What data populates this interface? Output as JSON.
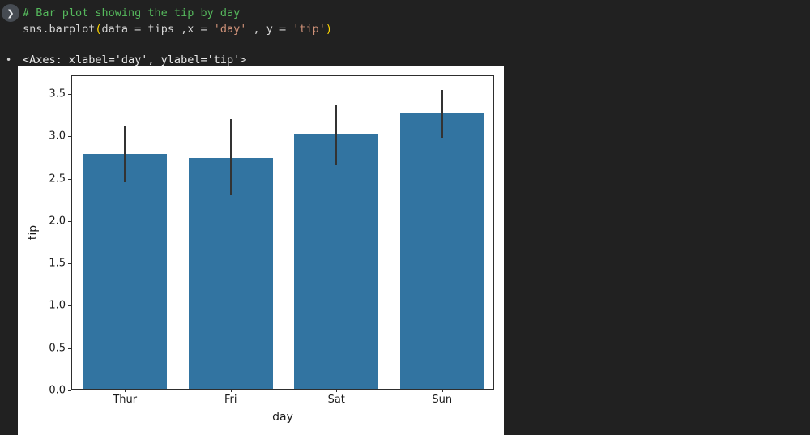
{
  "editor": {
    "run_icon": "❯",
    "comment": "# Bar plot showing the tip by day",
    "code_tokens": [
      {
        "t": "sns.barplot",
        "c": "plain"
      },
      {
        "t": "(",
        "c": "bracket"
      },
      {
        "t": "data = tips ,x = ",
        "c": "plain"
      },
      {
        "t": "'day'",
        "c": "string"
      },
      {
        "t": " , y = ",
        "c": "plain"
      },
      {
        "t": "'tip'",
        "c": "string"
      },
      {
        "t": ")",
        "c": "bracket"
      }
    ],
    "output_bullet": "•",
    "output_text": "<Axes: xlabel='day', ylabel='tip'>"
  },
  "colors": {
    "background": "#212121",
    "comment_green": "#55b85c",
    "string_orange": "#ce9178",
    "bracket_gold": "#ffd700",
    "figure_bg": "#ffffff"
  },
  "chart_data": {
    "type": "bar",
    "title": "",
    "xlabel": "day",
    "ylabel": "tip",
    "categories": [
      "Thur",
      "Fri",
      "Sat",
      "Sun"
    ],
    "values": [
      2.77,
      2.73,
      3.0,
      3.26
    ],
    "error_low": [
      2.46,
      2.3,
      2.66,
      2.98
    ],
    "error_high": [
      3.12,
      3.2,
      3.37,
      3.55
    ],
    "yticks": [
      0.0,
      0.5,
      1.0,
      1.5,
      2.0,
      2.5,
      3.0,
      3.5
    ],
    "ylim": [
      0,
      3.71
    ],
    "bar_width_fraction": 0.8,
    "bar_color": "#3274a1",
    "error_color": "#333333",
    "grid": false,
    "legend": "none"
  }
}
